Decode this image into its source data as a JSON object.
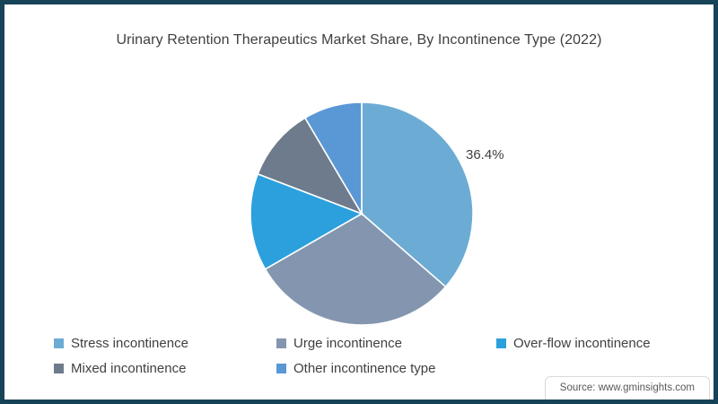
{
  "chart_data": {
    "type": "pie",
    "title": "Urinary Retention Therapeutics Market Share, By Incontinence Type (2022)",
    "slices": [
      {
        "label": "Stress incontinence",
        "value": 36.4,
        "color": "#6CACD4",
        "data_label": "36.4%"
      },
      {
        "label": "Urge incontinence",
        "value": 30.3,
        "color": "#8496AF",
        "data_label": ""
      },
      {
        "label": "Over-flow incontinence",
        "value": 14.1,
        "color": "#2BA0DD",
        "data_label": ""
      },
      {
        "label": "Mixed incontinence",
        "value": 10.7,
        "color": "#6E7B8C",
        "data_label": ""
      },
      {
        "label": "Other incontinence type",
        "value": 8.5,
        "color": "#5A97D5",
        "data_label": ""
      }
    ],
    "start_angle_deg": 0,
    "direction": "clockwise",
    "legend_position": "bottom",
    "shown_data_labels": [
      "36.4%"
    ]
  },
  "source": {
    "text": "Source: www.gminsights.com"
  },
  "frame": {
    "border_color": "#164358",
    "background_color": "#ffffff"
  }
}
